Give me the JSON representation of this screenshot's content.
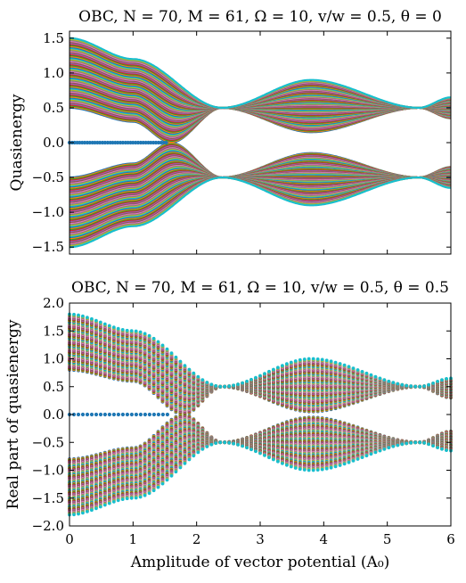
{
  "chart_data": [
    {
      "type": "scatter",
      "title": "OBC, N = 70, M = 61, Ω = 10, v/w = 0.5, θ = 0",
      "xlabel": "",
      "ylabel": "Quasienergy",
      "xlim": [
        0,
        6
      ],
      "ylim": [
        -1.6,
        1.6
      ],
      "xticks": [
        "0",
        "1",
        "2",
        "3",
        "4",
        "5",
        "6"
      ],
      "xticks_labeled": false,
      "yticks": [
        -1.5,
        -1.0,
        -0.5,
        0.0,
        0.5,
        1.0,
        1.5
      ],
      "ytick_labels": [
        "−1.5",
        "−1.0",
        "−0.5",
        "0.0",
        "0.5",
        "1.0",
        "1.5"
      ],
      "grid": false,
      "legend": "none",
      "series_summary": {
        "band_count": 140,
        "band_edge_max": [
          [
            0.0,
            1.5
          ],
          [
            1.0,
            1.2
          ],
          [
            2.4,
            0.5
          ],
          [
            3.8,
            0.9
          ],
          [
            5.5,
            0.5
          ],
          [
            6.0,
            0.65
          ]
        ],
        "band_edge_min": [
          [
            0.0,
            0.5
          ],
          [
            1.0,
            0.3
          ],
          [
            1.6,
            0.0
          ],
          [
            2.4,
            0.5
          ],
          [
            3.8,
            0.15
          ],
          [
            5.5,
            0.5
          ],
          [
            6.0,
            0.35
          ]
        ],
        "zero_modes": {
          "x_from": 0.0,
          "x_to": 1.55,
          "y": 0.0
        },
        "symmetric_about_zero": true
      }
    },
    {
      "type": "scatter",
      "title": "OBC, N = 70, M = 61, Ω = 10, v/w = 0.5, θ = 0.5",
      "xlabel": "Amplitude of vector potential (A₀)",
      "ylabel": "Real part of quasienergy",
      "xlim": [
        0,
        6
      ],
      "ylim": [
        -2.0,
        2.0
      ],
      "xticks": [
        "0",
        "1",
        "2",
        "3",
        "4",
        "5",
        "6"
      ],
      "yticks": [
        -2.0,
        -1.5,
        -1.0,
        -0.5,
        0.0,
        0.5,
        1.0,
        1.5,
        2.0
      ],
      "ytick_labels": [
        "−2.0",
        "−1.5",
        "−1.0",
        "−0.5",
        "0.0",
        "0.5",
        "1.0",
        "1.5",
        "2.0"
      ],
      "grid": false,
      "legend": "none",
      "series_summary": {
        "band_count": 140,
        "band_edge_max": [
          [
            0.0,
            1.8
          ],
          [
            1.0,
            1.5
          ],
          [
            2.4,
            0.5
          ],
          [
            3.8,
            1.0
          ],
          [
            5.5,
            0.5
          ],
          [
            6.0,
            0.65
          ]
        ],
        "band_edge_min": [
          [
            0.0,
            0.8
          ],
          [
            1.0,
            0.6
          ],
          [
            1.8,
            0.0
          ],
          [
            2.4,
            0.5
          ],
          [
            3.8,
            0.05
          ],
          [
            5.5,
            0.5
          ],
          [
            6.0,
            0.3
          ]
        ],
        "zero_modes": {
          "x_from": 0.0,
          "x_to": 1.6,
          "y": 0.0
        },
        "symmetric_about_zero": true
      }
    }
  ],
  "palette": [
    "#1f77b4",
    "#ff7f0e",
    "#2ca02c",
    "#d62728",
    "#9467bd",
    "#8c564b",
    "#e377c2",
    "#7f7f7f",
    "#bcbd22",
    "#17becf"
  ]
}
